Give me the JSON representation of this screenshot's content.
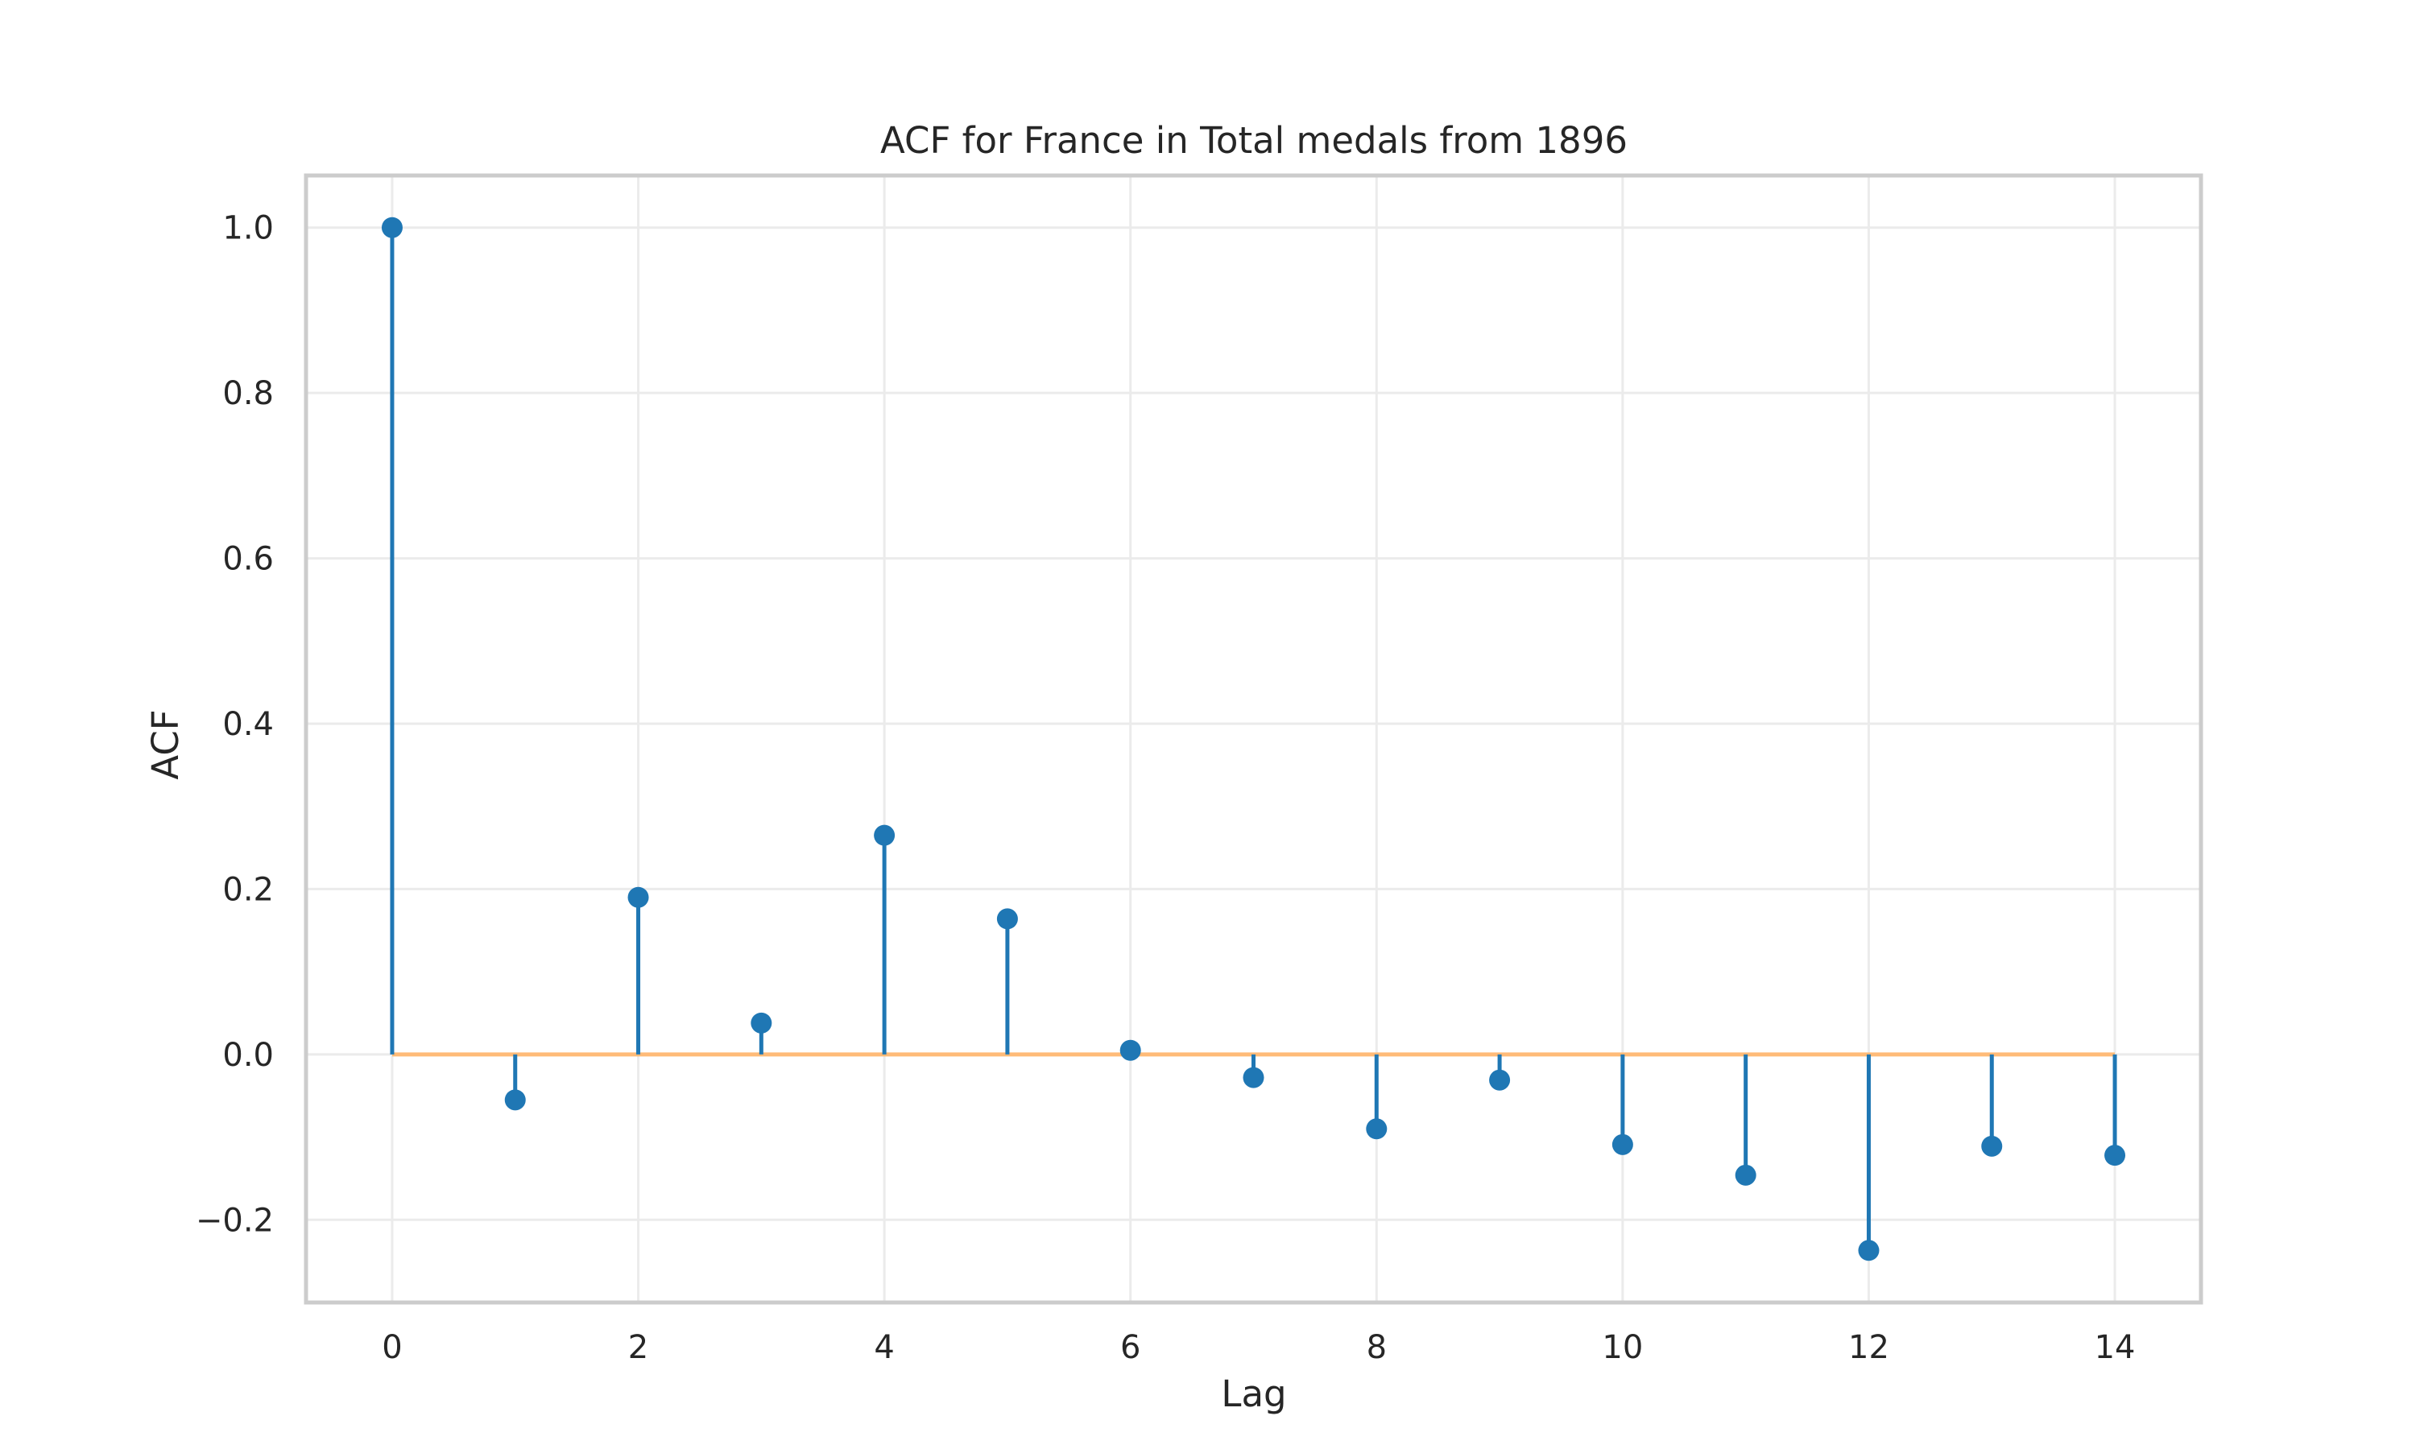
{
  "chart_data": {
    "type": "stem",
    "title": "ACF for France in Total medals from 1896",
    "xlabel": "Lag",
    "ylabel": "ACF",
    "x": [
      0,
      1,
      2,
      3,
      4,
      5,
      6,
      7,
      8,
      9,
      10,
      11,
      12,
      13,
      14
    ],
    "values": [
      1.0,
      -0.055,
      0.19,
      0.038,
      0.265,
      0.164,
      0.005,
      -0.028,
      -0.09,
      -0.031,
      -0.109,
      -0.146,
      -0.237,
      -0.111,
      -0.122
    ],
    "xlim": [
      -0.7,
      14.7
    ],
    "ylim": [
      -0.3,
      1.063
    ],
    "xticks": [
      0,
      2,
      4,
      6,
      8,
      10,
      12,
      14
    ],
    "xtick_labels": [
      "0",
      "2",
      "4",
      "6",
      "8",
      "10",
      "12",
      "14"
    ],
    "yticks": [
      -0.2,
      0.0,
      0.2,
      0.4,
      0.6,
      0.8,
      1.0
    ],
    "ytick_labels": [
      "−0.2",
      "0.0",
      "0.2",
      "0.4",
      "0.6",
      "0.8",
      "1.0"
    ],
    "grid": true,
    "baseline": 0.0,
    "colors": {
      "stem": "#1f77b4",
      "baseline": "#ffbb78",
      "grid": "#ebebeb",
      "frame": "#cccccc",
      "text": "#262626"
    }
  }
}
